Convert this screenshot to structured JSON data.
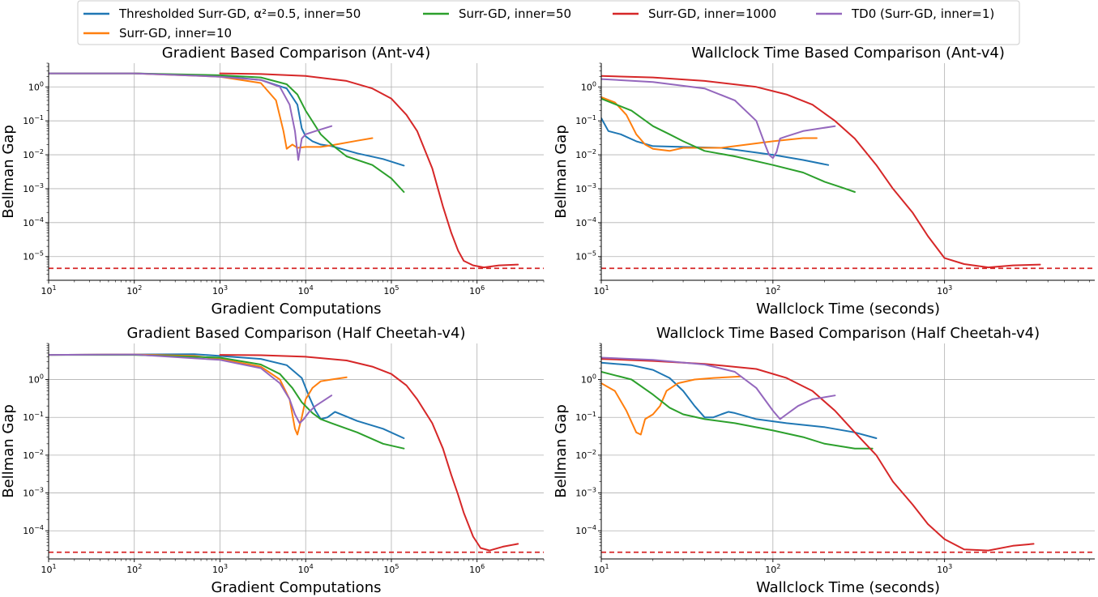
{
  "colors": {
    "blue": "#1f77b4",
    "orange": "#ff7f0e",
    "green": "#2ca02c",
    "red": "#d62728",
    "purple": "#9467bd"
  },
  "legend": [
    {
      "key": "thr",
      "label": "Thresholded Surr-GD, α²=0.5, inner=50",
      "color": "#1f77b4"
    },
    {
      "key": "s50",
      "label": "Surr-GD, inner=50",
      "color": "#2ca02c"
    },
    {
      "key": "s1000",
      "label": "Surr-GD, inner=1000",
      "color": "#d62728"
    },
    {
      "key": "td0",
      "label": "TD0 (Surr-GD, inner=1)",
      "color": "#9467bd"
    },
    {
      "key": "s10",
      "label": "Surr-GD, inner=10",
      "color": "#ff7f0e"
    }
  ],
  "chart_data": [
    {
      "type": "line",
      "title": "Gradient Based Comparison (Ant-v4)",
      "xlabel": "Gradient Computations",
      "ylabel": "Bellman Gap",
      "xscale": "log",
      "yscale": "log",
      "xlim": [
        10,
        6000000
      ],
      "ylim": [
        2e-06,
        5
      ],
      "xticks": [
        {
          "v": 10,
          "base": "10",
          "exp": "1"
        },
        {
          "v": 100,
          "base": "10",
          "exp": "2"
        },
        {
          "v": 1000,
          "base": "10",
          "exp": "3"
        },
        {
          "v": 10000,
          "base": "10",
          "exp": "4"
        },
        {
          "v": 100000,
          "base": "10",
          "exp": "5"
        },
        {
          "v": 1000000,
          "base": "10",
          "exp": "6"
        }
      ],
      "yticks": [
        {
          "v": 1e-05,
          "base": "10",
          "exp": "−5"
        },
        {
          "v": 0.0001,
          "base": "10",
          "exp": "−4"
        },
        {
          "v": 0.001,
          "base": "10",
          "exp": "−3"
        },
        {
          "v": 0.01,
          "base": "10",
          "exp": "−2"
        },
        {
          "v": 0.1,
          "base": "10",
          "exp": "−1"
        },
        {
          "v": 1,
          "base": "10",
          "exp": "0"
        }
      ],
      "hline": 4.5e-06,
      "series": [
        {
          "key": "thr",
          "color": "#1f77b4",
          "x": [
            10,
            100,
            1000,
            3000,
            6000,
            8000,
            9000,
            10000,
            12000,
            15000,
            20000,
            40000,
            80000,
            140000
          ],
          "y": [
            2.5,
            2.5,
            2.1,
            1.6,
            0.9,
            0.3,
            0.06,
            0.035,
            0.025,
            0.02,
            0.018,
            0.011,
            0.0075,
            0.0048
          ]
        },
        {
          "key": "s10",
          "color": "#ff7f0e",
          "x": [
            10,
            100,
            1000,
            3000,
            4500,
            5500,
            6000,
            7000,
            8000,
            10000,
            15000,
            20000,
            40000,
            60000
          ],
          "y": [
            2.5,
            2.5,
            2.0,
            1.3,
            0.4,
            0.05,
            0.015,
            0.02,
            0.016,
            0.017,
            0.017,
            0.019,
            0.026,
            0.031
          ]
        },
        {
          "key": "s50",
          "color": "#2ca02c",
          "x": [
            10,
            100,
            1000,
            3000,
            6000,
            8000,
            10000,
            15000,
            20000,
            30000,
            60000,
            100000,
            140000
          ],
          "y": [
            2.5,
            2.5,
            2.2,
            1.9,
            1.2,
            0.6,
            0.2,
            0.04,
            0.02,
            0.009,
            0.005,
            0.002,
            0.0008
          ]
        },
        {
          "key": "s1000",
          "color": "#d62728",
          "x": [
            1000,
            3000,
            10000,
            30000,
            60000,
            100000,
            150000,
            200000,
            300000,
            400000,
            500000,
            600000,
            700000,
            900000,
            1200000,
            1800000,
            3000000
          ],
          "y": [
            2.5,
            2.4,
            2.1,
            1.5,
            0.9,
            0.45,
            0.15,
            0.05,
            0.004,
            0.0003,
            5e-05,
            1.5e-05,
            7.5e-06,
            5.5e-06,
            4.8e-06,
            5.5e-06,
            5.8e-06
          ]
        },
        {
          "key": "td0",
          "color": "#9467bd",
          "x": [
            10,
            100,
            1000,
            3000,
            5000,
            6500,
            7500,
            8200,
            9000,
            10000,
            13000,
            20000
          ],
          "y": [
            2.5,
            2.5,
            2.0,
            1.6,
            1.0,
            0.3,
            0.05,
            0.007,
            0.03,
            0.04,
            0.05,
            0.07
          ]
        }
      ]
    },
    {
      "type": "line",
      "title": "Wallclock Time Based Comparison (Ant-v4)",
      "xlabel": "Wallclock Time (seconds)",
      "ylabel": "Bellman Gap",
      "xscale": "log",
      "yscale": "log",
      "xlim": [
        10,
        7500
      ],
      "ylim": [
        2e-06,
        5
      ],
      "xticks": [
        {
          "v": 10,
          "base": "10",
          "exp": "1"
        },
        {
          "v": 100,
          "base": "10",
          "exp": "2"
        },
        {
          "v": 1000,
          "base": "10",
          "exp": "3"
        }
      ],
      "yticks": [
        {
          "v": 1e-05,
          "base": "10",
          "exp": "−5"
        },
        {
          "v": 0.0001,
          "base": "10",
          "exp": "−4"
        },
        {
          "v": 0.001,
          "base": "10",
          "exp": "−3"
        },
        {
          "v": 0.01,
          "base": "10",
          "exp": "−2"
        },
        {
          "v": 0.1,
          "base": "10",
          "exp": "−1"
        },
        {
          "v": 1,
          "base": "10",
          "exp": "0"
        }
      ],
      "hline": 4.5e-06,
      "series": [
        {
          "key": "thr",
          "color": "#1f77b4",
          "x": [
            10,
            11,
            13,
            16,
            20,
            30,
            50,
            100,
            150,
            210
          ],
          "y": [
            0.12,
            0.05,
            0.04,
            0.025,
            0.018,
            0.017,
            0.016,
            0.01,
            0.007,
            0.005
          ]
        },
        {
          "key": "s10",
          "color": "#ff7f0e",
          "x": [
            10,
            12,
            14,
            16,
            18,
            20,
            25,
            30,
            50,
            100,
            150,
            180
          ],
          "y": [
            0.5,
            0.35,
            0.15,
            0.04,
            0.02,
            0.015,
            0.013,
            0.016,
            0.016,
            0.025,
            0.031,
            0.031
          ]
        },
        {
          "key": "s50",
          "color": "#2ca02c",
          "x": [
            10,
            15,
            20,
            25,
            30,
            40,
            60,
            100,
            150,
            200,
            250,
            300
          ],
          "y": [
            0.45,
            0.2,
            0.07,
            0.04,
            0.025,
            0.013,
            0.009,
            0.005,
            0.003,
            0.0016,
            0.0011,
            0.0008
          ]
        },
        {
          "key": "s1000",
          "color": "#d62728",
          "x": [
            10,
            20,
            40,
            80,
            120,
            170,
            230,
            300,
            400,
            500,
            650,
            800,
            1000,
            1300,
            1800,
            2500,
            3600
          ],
          "y": [
            2.1,
            1.9,
            1.5,
            1.0,
            0.6,
            0.3,
            0.1,
            0.03,
            0.005,
            0.001,
            0.0002,
            4e-05,
            9e-06,
            6e-06,
            4.8e-06,
            5.5e-06,
            5.8e-06
          ]
        },
        {
          "key": "td0",
          "color": "#9467bd",
          "x": [
            10,
            20,
            40,
            60,
            80,
            90,
            95,
            100,
            105,
            110,
            120,
            150,
            230
          ],
          "y": [
            1.7,
            1.4,
            0.9,
            0.4,
            0.1,
            0.02,
            0.01,
            0.008,
            0.012,
            0.03,
            0.035,
            0.05,
            0.07
          ]
        }
      ]
    },
    {
      "type": "line",
      "title": "Gradient Based Comparison (Half Cheetah-v4)",
      "xlabel": "Gradient Computations",
      "ylabel": "Bellman Gap",
      "xscale": "log",
      "yscale": "log",
      "xlim": [
        10,
        6000000
      ],
      "ylim": [
        1.8e-05,
        9
      ],
      "xticks": [
        {
          "v": 10,
          "base": "10",
          "exp": "1"
        },
        {
          "v": 100,
          "base": "10",
          "exp": "2"
        },
        {
          "v": 1000,
          "base": "10",
          "exp": "3"
        },
        {
          "v": 10000,
          "base": "10",
          "exp": "4"
        },
        {
          "v": 100000,
          "base": "10",
          "exp": "5"
        },
        {
          "v": 1000000,
          "base": "10",
          "exp": "6"
        }
      ],
      "yticks": [
        {
          "v": 0.0001,
          "base": "10",
          "exp": "−4"
        },
        {
          "v": 0.001,
          "base": "10",
          "exp": "−3"
        },
        {
          "v": 0.01,
          "base": "10",
          "exp": "−2"
        },
        {
          "v": 0.1,
          "base": "10",
          "exp": "−1"
        },
        {
          "v": 1,
          "base": "10",
          "exp": "0"
        }
      ],
      "hline": 2.7e-05,
      "series": [
        {
          "key": "thr",
          "color": "#1f77b4",
          "x": [
            10,
            100,
            500,
            1000,
            3000,
            6000,
            9000,
            11000,
            13000,
            15000,
            18000,
            22000,
            40000,
            80000,
            140000
          ],
          "y": [
            4.5,
            4.6,
            4.7,
            4.2,
            3.5,
            2.4,
            1.1,
            0.35,
            0.15,
            0.09,
            0.1,
            0.14,
            0.08,
            0.05,
            0.028
          ]
        },
        {
          "key": "s10",
          "color": "#ff7f0e",
          "x": [
            10,
            100,
            500,
            1000,
            3000,
            5000,
            6500,
            7500,
            8000,
            9000,
            10000,
            12000,
            15000,
            20000,
            30000
          ],
          "y": [
            4.5,
            4.6,
            4.2,
            3.5,
            2.2,
            1.0,
            0.3,
            0.05,
            0.035,
            0.1,
            0.3,
            0.6,
            0.9,
            1.0,
            1.15
          ]
        },
        {
          "key": "s50",
          "color": "#2ca02c",
          "x": [
            10,
            100,
            1000,
            3000,
            5000,
            7000,
            9000,
            12000,
            15000,
            20000,
            40000,
            80000,
            140000
          ],
          "y": [
            4.5,
            4.5,
            3.8,
            2.5,
            1.4,
            0.6,
            0.25,
            0.13,
            0.09,
            0.07,
            0.04,
            0.02,
            0.015
          ]
        },
        {
          "key": "s1000",
          "color": "#d62728",
          "x": [
            1000,
            3000,
            10000,
            30000,
            60000,
            100000,
            150000,
            200000,
            300000,
            400000,
            500000,
            600000,
            700000,
            900000,
            1100000,
            1400000,
            2000000,
            3000000
          ],
          "y": [
            4.5,
            4.4,
            4.0,
            3.2,
            2.2,
            1.4,
            0.7,
            0.3,
            0.07,
            0.015,
            0.003,
            0.0009,
            0.0003,
            7e-05,
            3.5e-05,
            3e-05,
            3.8e-05,
            4.5e-05
          ]
        },
        {
          "key": "td0",
          "color": "#9467bd",
          "x": [
            10,
            100,
            1000,
            3000,
            5000,
            6500,
            7500,
            8500,
            9500,
            11000,
            13000,
            20000
          ],
          "y": [
            4.5,
            4.6,
            3.3,
            2.0,
            0.8,
            0.3,
            0.12,
            0.07,
            0.09,
            0.14,
            0.2,
            0.38
          ]
        }
      ]
    },
    {
      "type": "line",
      "title": "Wallclock Time Based Comparison (Half Cheetah-v4)",
      "xlabel": "Wallclock Time (seconds)",
      "ylabel": "Bellman Gap",
      "xscale": "log",
      "yscale": "log",
      "xlim": [
        10,
        7500
      ],
      "ylim": [
        1.8e-05,
        9
      ],
      "xticks": [
        {
          "v": 10,
          "base": "10",
          "exp": "1"
        },
        {
          "v": 100,
          "base": "10",
          "exp": "2"
        },
        {
          "v": 1000,
          "base": "10",
          "exp": "3"
        }
      ],
      "yticks": [
        {
          "v": 0.0001,
          "base": "10",
          "exp": "−4"
        },
        {
          "v": 0.001,
          "base": "10",
          "exp": "−3"
        },
        {
          "v": 0.01,
          "base": "10",
          "exp": "−2"
        },
        {
          "v": 0.1,
          "base": "10",
          "exp": "−1"
        },
        {
          "v": 1,
          "base": "10",
          "exp": "0"
        }
      ],
      "hline": 2.7e-05,
      "series": [
        {
          "key": "thr",
          "color": "#1f77b4",
          "x": [
            10,
            15,
            20,
            25,
            30,
            35,
            40,
            45,
            50,
            55,
            60,
            80,
            120,
            200,
            300,
            400
          ],
          "y": [
            2.8,
            2.4,
            1.8,
            1.1,
            0.5,
            0.2,
            0.1,
            0.1,
            0.12,
            0.14,
            0.13,
            0.09,
            0.07,
            0.055,
            0.04,
            0.028
          ]
        },
        {
          "key": "s10",
          "color": "#ff7f0e",
          "x": [
            10,
            12,
            14,
            16,
            17,
            18,
            20,
            22,
            24,
            28,
            35,
            45,
            65
          ],
          "y": [
            0.8,
            0.5,
            0.15,
            0.04,
            0.035,
            0.09,
            0.12,
            0.2,
            0.5,
            0.8,
            1.0,
            1.1,
            1.2
          ]
        },
        {
          "key": "s50",
          "color": "#2ca02c",
          "x": [
            10,
            15,
            20,
            25,
            30,
            40,
            60,
            100,
            150,
            200,
            300,
            380
          ],
          "y": [
            1.6,
            1.0,
            0.4,
            0.18,
            0.12,
            0.09,
            0.07,
            0.045,
            0.03,
            0.02,
            0.015,
            0.015
          ]
        },
        {
          "key": "s1000",
          "color": "#d62728",
          "x": [
            10,
            20,
            40,
            80,
            120,
            170,
            230,
            300,
            400,
            500,
            650,
            800,
            1000,
            1300,
            1800,
            2500,
            3300
          ],
          "y": [
            3.5,
            3.1,
            2.6,
            1.9,
            1.1,
            0.5,
            0.15,
            0.04,
            0.01,
            0.002,
            0.0005,
            0.00015,
            6e-05,
            3.2e-05,
            3e-05,
            4e-05,
            4.5e-05
          ]
        },
        {
          "key": "td0",
          "color": "#9467bd",
          "x": [
            10,
            20,
            40,
            60,
            80,
            100,
            110,
            120,
            140,
            170,
            230
          ],
          "y": [
            3.8,
            3.3,
            2.5,
            1.6,
            0.6,
            0.15,
            0.09,
            0.12,
            0.2,
            0.3,
            0.38
          ]
        }
      ]
    }
  ]
}
